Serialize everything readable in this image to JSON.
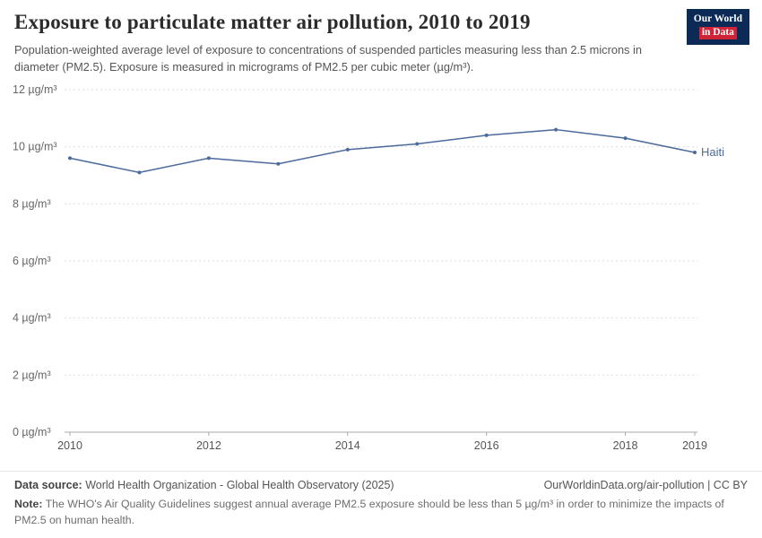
{
  "header": {
    "title": "Exposure to particulate matter air pollution, 2010 to 2019",
    "subtitle": "Population-weighted average level of exposure to concentrations of suspended particles measuring less than 2.5 microns in diameter (PM2.5). Exposure is measured in micrograms of PM2.5 per cubic meter (µg/m³).",
    "logo": {
      "line1": "Our World",
      "line2": "in Data"
    }
  },
  "chart_data": {
    "type": "line",
    "title": "Exposure to particulate matter air pollution, 2010 to 2019",
    "xlabel": "",
    "ylabel": "",
    "x": [
      2010,
      2011,
      2012,
      2013,
      2014,
      2015,
      2016,
      2017,
      2018,
      2019
    ],
    "series": [
      {
        "name": "Haiti",
        "color": "#4C6A9C",
        "values": [
          9.6,
          9.1,
          9.6,
          9.4,
          9.9,
          10.1,
          10.4,
          10.6,
          10.3,
          9.8
        ]
      }
    ],
    "ylim": [
      0,
      12
    ],
    "yticks": [
      0,
      2,
      4,
      6,
      8,
      10,
      12
    ],
    "ytick_unit": "µg/m³",
    "xticks": [
      2010,
      2012,
      2014,
      2016,
      2018,
      2019
    ],
    "grid": true,
    "legend_position": "end-of-line-label"
  },
  "colors": {
    "series_blue": "#4C6A9C",
    "gridline": "#dedede",
    "axis": "#a8a8a8",
    "tick_text": "#666666",
    "logo_navy": "#0b2a55",
    "logo_red": "#cf2437"
  },
  "footer": {
    "source_label": "Data source:",
    "source_text": "World Health Organization - Global Health Observatory (2025)",
    "credit": "OurWorldinData.org/air-pollution | CC BY",
    "note_label": "Note:",
    "note_text": "The WHO's Air Quality Guidelines suggest annual average PM2.5 exposure should be less than 5 µg/m³ in order to minimize the impacts of PM2.5 on human health."
  }
}
